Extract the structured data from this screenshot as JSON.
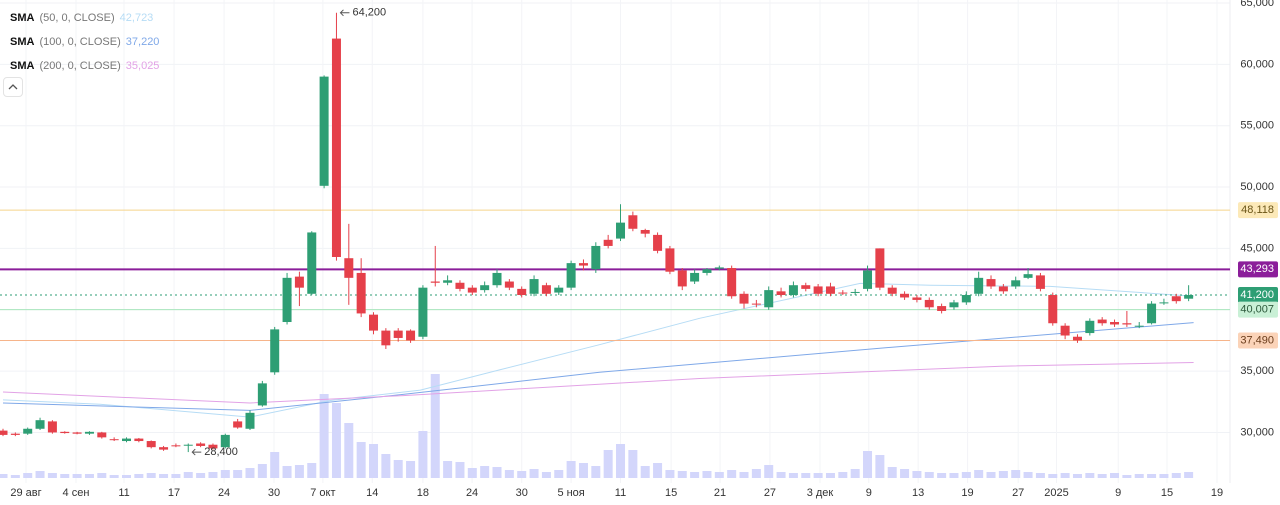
{
  "chart_data": {
    "type": "candlestick",
    "xlim": [
      -0.243,
      99.35
    ],
    "xticks": [
      {
        "value": 1.86,
        "label": "29 авг"
      },
      {
        "value": 5.91,
        "label": "4 сен"
      },
      {
        "value": 9.8,
        "label": "11"
      },
      {
        "value": 13.85,
        "label": "17"
      },
      {
        "value": 17.9,
        "label": "24"
      },
      {
        "value": 21.94,
        "label": "30"
      },
      {
        "value": 25.9,
        "label": "7 окт"
      },
      {
        "value": 29.9,
        "label": "14"
      },
      {
        "value": 34.0,
        "label": "18"
      },
      {
        "value": 37.98,
        "label": "24"
      },
      {
        "value": 42.0,
        "label": "30"
      },
      {
        "value": 46.0,
        "label": "5 ноя"
      },
      {
        "value": 50.0,
        "label": "11"
      },
      {
        "value": 54.1,
        "label": "15"
      },
      {
        "value": 58.06,
        "label": "21"
      },
      {
        "value": 62.1,
        "label": "27"
      },
      {
        "value": 66.15,
        "label": "3 дек"
      },
      {
        "value": 70.1,
        "label": "9"
      },
      {
        "value": 74.1,
        "label": "13"
      },
      {
        "value": 78.1,
        "label": "19"
      },
      {
        "value": 82.2,
        "label": "27"
      },
      {
        "value": 85.3,
        "label": "2025"
      },
      {
        "value": 90.3,
        "label": "9"
      },
      {
        "value": 94.25,
        "label": "15"
      },
      {
        "value": 98.3,
        "label": "19"
      }
    ],
    "ylim": [
      25880,
      65244
    ],
    "yticks": [
      {
        "value": 30000,
        "label": "30,000"
      },
      {
        "value": 35000,
        "label": "35,000"
      },
      {
        "value": 40000,
        "label": "40,000"
      },
      {
        "value": 45000,
        "label": "45,000"
      },
      {
        "value": 50000,
        "label": "50,000"
      },
      {
        "value": 55000,
        "label": "55,000"
      },
      {
        "value": 60000,
        "label": "60,000"
      },
      {
        "value": 65000,
        "label": "65,000"
      }
    ],
    "grid": true,
    "up_color": "#2e9e74",
    "down_color": "#e5404a",
    "volume_color": "#d3d6fb",
    "open": [
      30150,
      29900,
      29900,
      30300,
      30900,
      30050,
      30000,
      29900,
      30000,
      29450,
      29300,
      29500,
      29300,
      28800,
      28950,
      28950,
      29100,
      29000,
      28800,
      30900,
      30300,
      32200,
      34900,
      39000,
      42700,
      41300,
      50100,
      62100,
      44200,
      43000,
      39600,
      38300,
      38300,
      38300,
      37800,
      42300,
      42200,
      42200,
      41800,
      41600,
      42000,
      42300,
      41700,
      41300,
      42000,
      41400,
      41800,
      43800,
      43300,
      45700,
      45800,
      47700,
      46500,
      46100,
      45000,
      43200,
      42300,
      43000,
      43350,
      43400,
      41300,
      40500,
      40200,
      41500,
      41200,
      42000,
      41900,
      41900,
      41400,
      41400,
      41700,
      45000,
      41800,
      41300,
      41000,
      40800,
      40300,
      40200,
      40600,
      41300,
      42500,
      41900,
      41900,
      42600,
      42800,
      41200,
      38700,
      37800,
      38100,
      39200,
      39000,
      38900,
      38650,
      38900,
      40550,
      41100,
      40900
    ],
    "high": [
      30300,
      30000,
      30400,
      31200,
      31000,
      30100,
      30050,
      30100,
      30050,
      29600,
      29600,
      29550,
      29350,
      28900,
      29100,
      29100,
      29200,
      29100,
      29900,
      31100,
      31800,
      34200,
      38600,
      43000,
      43100,
      46400,
      59100,
      64200,
      47000,
      44200,
      39800,
      38500,
      38500,
      38400,
      42000,
      45200,
      42800,
      42400,
      42000,
      42300,
      43300,
      42500,
      41900,
      42800,
      42200,
      42000,
      44000,
      44100,
      45500,
      46100,
      48600,
      48000,
      46600,
      46300,
      45200,
      43400,
      43300,
      43400,
      43600,
      43600,
      41500,
      40800,
      41900,
      41800,
      42300,
      42200,
      42100,
      42200,
      41600,
      41700,
      43600,
      45000,
      42000,
      41500,
      41200,
      41000,
      40500,
      40800,
      41500,
      43100,
      42800,
      42100,
      42700,
      43400,
      43000,
      41400,
      38900,
      38000,
      39300,
      39400,
      39200,
      39900,
      39000,
      40700,
      40900,
      41300,
      42000
    ],
    "low": [
      29700,
      29700,
      29800,
      30200,
      29900,
      29900,
      29850,
      29800,
      29500,
      29300,
      29200,
      29200,
      28700,
      28500,
      28800,
      28400,
      28800,
      28600,
      28700,
      30300,
      30200,
      32100,
      34700,
      38800,
      40300,
      41200,
      49900,
      44000,
      40400,
      39400,
      38000,
      36800,
      37400,
      37300,
      37600,
      41900,
      42000,
      41500,
      41200,
      41400,
      41800,
      41600,
      41000,
      41100,
      41100,
      41200,
      41600,
      43200,
      43000,
      45000,
      45600,
      46400,
      45900,
      44600,
      42900,
      41600,
      42100,
      42800,
      43200,
      40900,
      40100,
      40200,
      40000,
      41000,
      41000,
      41500,
      41100,
      41100,
      41200,
      41200,
      41500,
      41600,
      41100,
      40800,
      40600,
      40000,
      39700,
      40000,
      40400,
      41100,
      41700,
      41300,
      41700,
      42500,
      41500,
      38700,
      37600,
      37300,
      37900,
      38700,
      38600,
      38600,
      38500,
      38800,
      40400,
      40500,
      40700
    ],
    "close": [
      29800,
      29800,
      30300,
      31000,
      30000,
      29950,
      29900,
      30050,
      29600,
      29400,
      29500,
      29300,
      28800,
      28600,
      28900,
      29000,
      28900,
      28700,
      29800,
      30400,
      31600,
      34000,
      38400,
      42600,
      41800,
      46300,
      59000,
      44300,
      42600,
      39700,
      38300,
      37100,
      37700,
      37500,
      41800,
      42200,
      42400,
      41700,
      41400,
      42000,
      43000,
      41800,
      41200,
      42500,
      41300,
      41800,
      43800,
      43600,
      45200,
      45200,
      47100,
      46600,
      46200,
      44800,
      43100,
      41900,
      43000,
      43300,
      43450,
      41100,
      40500,
      40450,
      41600,
      41200,
      42000,
      41700,
      41300,
      41300,
      41350,
      41450,
      43200,
      41800,
      41300,
      41000,
      40800,
      40200,
      39900,
      40600,
      41200,
      42600,
      41900,
      41500,
      42400,
      42900,
      41700,
      38900,
      37900,
      37500,
      39100,
      38900,
      38800,
      38800,
      38700,
      40500,
      40600,
      40700,
      41200
    ],
    "volume": [
      4,
      3,
      5,
      7,
      5,
      4,
      4,
      4,
      5,
      3,
      3,
      4,
      5,
      4,
      4,
      6,
      5,
      6,
      8,
      8,
      10,
      14,
      26,
      12,
      13,
      15,
      84,
      75,
      55,
      36,
      34,
      24,
      18,
      17,
      47,
      104,
      17,
      16,
      10,
      12,
      11,
      8,
      7,
      9,
      6,
      8,
      17,
      15,
      12,
      28,
      34,
      28,
      12,
      15,
      8,
      7,
      6,
      7,
      6,
      8,
      6,
      9,
      13,
      6,
      5,
      5,
      5,
      5,
      6,
      9,
      27,
      23,
      11,
      9,
      7,
      6,
      5,
      5,
      6,
      8,
      6,
      7,
      8,
      6,
      5,
      4,
      5,
      4,
      5,
      4,
      5,
      3,
      4,
      4,
      4,
      5,
      6
    ],
    "sma": [
      {
        "name": "SMA",
        "params": "(50, 0, CLOSE)",
        "color": "#b6dcf5",
        "last": {
          "value": 42723,
          "label": "42,723"
        },
        "x": [
          0,
          7.85,
          20,
          26.5,
          33.8,
          40.2,
          48.3,
          56.4,
          69.4,
          75.1,
          84.8,
          96.4
        ],
        "values": [
          32650,
          32300,
          31250,
          32600,
          33450,
          35100,
          37150,
          39300,
          42150,
          42000,
          41900,
          41100
        ]
      },
      {
        "name": "SMA",
        "params": "(100, 0, CLOSE)",
        "color": "#7fa8e8",
        "last": {
          "value": 37220,
          "label": "37,220"
        },
        "x": [
          0,
          20,
          32.4,
          48.3,
          72.6,
          96.4
        ],
        "values": [
          32400,
          31800,
          33100,
          34900,
          37000,
          38950
        ]
      },
      {
        "name": "SMA",
        "params": "(200, 0, CLOSE)",
        "color": "#e2a2e6",
        "last": {
          "value": 35025,
          "label": "35,025"
        },
        "x": [
          0,
          20,
          32.4,
          56.4,
          80.8,
          96.4
        ],
        "values": [
          33300,
          32400,
          33000,
          34400,
          35400,
          35700
        ]
      }
    ],
    "price_lines": [
      {
        "value": 48118,
        "label": "48,118",
        "color": "#f5d48b",
        "label_bg": "#fce9b8",
        "label_color": "#6b5517",
        "dashed": false
      },
      {
        "value": 43293,
        "label": "43,293",
        "color": "#8b1e9a",
        "label_bg": "#8b1e9a",
        "label_color": "#ffffff",
        "dashed": false
      },
      {
        "value": 41200,
        "label": "41,200",
        "color": "#2e9e74",
        "label_bg": "#2e9e74",
        "label_color": "#ffffff",
        "dashed": true
      },
      {
        "value": 40007,
        "label": "40,007",
        "color": "#a8e6bd",
        "label_bg": "#c9f0d6",
        "label_color": "#2d5a3c",
        "dashed": false
      },
      {
        "value": 37490,
        "label": "37,490",
        "color": "#f6b48a",
        "label_bg": "#fbd3b8",
        "label_color": "#6b3d1c",
        "dashed": false
      }
    ],
    "annotations": [
      {
        "index": 27,
        "value": 64200,
        "label": "64,200"
      },
      {
        "index": 15,
        "value": 28400,
        "label": "28,400"
      }
    ]
  }
}
